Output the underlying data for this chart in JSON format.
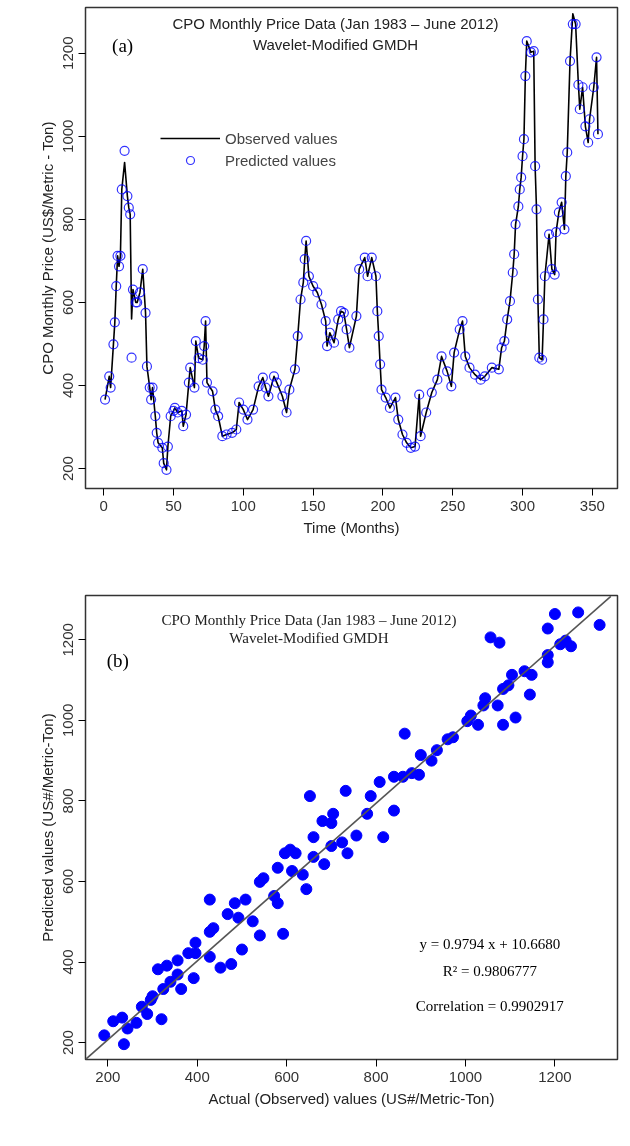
{
  "chart_data": [
    {
      "type": "line",
      "title": "CPO Monthly Price Data (Jan 1983 – June 2012)",
      "subtitle": "Wavelet-Modified GMDH",
      "xlabel": "Time (Months)",
      "ylabel": "CPO Monthly Price (US$/Metric - Ton)",
      "annotations": [
        "(a)"
      ],
      "x": [
        1,
        4,
        5,
        7,
        8,
        9,
        10,
        11,
        12,
        13,
        15,
        17,
        18,
        19,
        20,
        21,
        23,
        24,
        26,
        28,
        30,
        31,
        33,
        34,
        35,
        37,
        38,
        39,
        42,
        43,
        45,
        46,
        48,
        50,
        51,
        53,
        56,
        57,
        59,
        61,
        62,
        65,
        66,
        68,
        71,
        72,
        73,
        74,
        78,
        80,
        82,
        85,
        88,
        92,
        95,
        97,
        100,
        103,
        107,
        111,
        114,
        116,
        118,
        122,
        124,
        128,
        131,
        133,
        137,
        139,
        141,
        143,
        144,
        145,
        147,
        150,
        153,
        156,
        159,
        160,
        162,
        165,
        168,
        170,
        172,
        174,
        176,
        181,
        183,
        187,
        189,
        192,
        195,
        196,
        197,
        198,
        199,
        202,
        205,
        209,
        211,
        214,
        217,
        220,
        223,
        226,
        227,
        231,
        235,
        239,
        242,
        246,
        249,
        251,
        255,
        257,
        259,
        262,
        266,
        270,
        273,
        278,
        283,
        285,
        287,
        289,
        291,
        293,
        294,
        295,
        297,
        298,
        299,
        300,
        301,
        302,
        303,
        306,
        308,
        309,
        310,
        311,
        312,
        314,
        315,
        316,
        319,
        321,
        323,
        324,
        326,
        328,
        330,
        331,
        332,
        334,
        336,
        338,
        340,
        341,
        343,
        345,
        347,
        348,
        351,
        353,
        354
      ],
      "series": [
        {
          "name": "Observed values",
          "color": "#000000",
          "values": [
            366,
            422,
            395,
            499,
            552,
            639,
            712,
            687,
            712,
            872,
            937,
            856,
            828,
            812,
            560,
            631,
            600,
            600,
            624,
            680,
            575,
            446,
            395,
            366,
            395,
            326,
            286,
            262,
            250,
            213,
            197,
            253,
            326,
            339,
            346,
            335,
            339,
            302,
            330,
            407,
            443,
            395,
            507,
            466,
            462,
            495,
            555,
            407,
            386,
            342,
            326,
            278,
            282,
            286,
            294,
            359,
            342,
            318,
            342,
            398,
            419,
            395,
            374,
            422,
            407,
            374,
            335,
            390,
            439,
            519,
            607,
            648,
            704,
            748,
            663,
            639,
            624,
            595,
            555,
            495,
            527,
            503,
            559,
            579,
            575,
            535,
            491,
            567,
            680,
            708,
            663,
            708,
            663,
            579,
            519,
            451,
            390,
            371,
            346,
            371,
            318,
            282,
            262,
            250,
            253,
            378,
            278,
            335,
            383,
            414,
            470,
            434,
            398,
            479,
            535,
            555,
            470,
            443,
            426,
            414,
            422,
            443,
            439,
            491,
            507,
            559,
            603,
            672,
            716,
            788,
            831,
            872,
            901,
            952,
            993,
            1145,
            1229,
            1202,
            1205,
            928,
            824,
            607,
            467,
            462,
            559,
            663,
            764,
            680,
            667,
            769,
            817,
            841,
            776,
            904,
            961,
            1181,
            1295,
            1270,
            1124,
            1065,
            1118,
            1024,
            985,
            1041,
            1118,
            1190,
            1005
          ]
        },
        {
          "name": "Predicted values",
          "type": "scatter",
          "marker": "circle",
          "color": "#0000ff",
          "values": [
            366,
            422,
            395,
            499,
            552,
            639,
            712,
            687,
            712,
            872,
            965,
            856,
            828,
            812,
            467,
            631,
            600,
            600,
            624,
            680,
            575,
            446,
            395,
            366,
            395,
            326,
            286,
            262,
            250,
            213,
            197,
            253,
            326,
            339,
            346,
            335,
            339,
            302,
            330,
            407,
            443,
            395,
            507,
            466,
            462,
            495,
            555,
            407,
            386,
            342,
            326,
            278,
            282,
            286,
            294,
            359,
            342,
            318,
            342,
            398,
            419,
            395,
            374,
            422,
            407,
            374,
            335,
            390,
            439,
            519,
            607,
            648,
            704,
            748,
            663,
            639,
            624,
            595,
            555,
            495,
            527,
            503,
            559,
            579,
            575,
            535,
            491,
            567,
            680,
            708,
            663,
            708,
            663,
            579,
            519,
            451,
            390,
            371,
            346,
            371,
            318,
            282,
            262,
            250,
            253,
            378,
            278,
            335,
            383,
            414,
            470,
            434,
            398,
            479,
            535,
            555,
            470,
            443,
            426,
            414,
            422,
            443,
            439,
            491,
            507,
            559,
            603,
            672,
            716,
            788,
            831,
            872,
            901,
            952,
            993,
            1145,
            1229,
            1202,
            1205,
            928,
            824,
            607,
            467,
            462,
            559,
            663,
            764,
            680,
            667,
            769,
            817,
            841,
            776,
            904,
            961,
            1181,
            1270,
            1270,
            1124,
            1065,
            1118,
            1024,
            985,
            1041,
            1118,
            1190,
            1005
          ]
        }
      ],
      "xlim": [
        -13,
        368
      ],
      "ylim": [
        152,
        1310
      ],
      "xticks": [
        0,
        50,
        100,
        150,
        200,
        250,
        300,
        350
      ],
      "yticks": [
        200,
        400,
        600,
        800,
        1000,
        1200
      ],
      "grid": false,
      "legend": "top left"
    },
    {
      "type": "scatter",
      "title": "CPO Monthly Price Data (Jan 1983 – June 2012)",
      "subtitle": "Wavelet-Modified GMDH",
      "xlabel": "Actual (Observed) values (US#/Metric-Ton)",
      "ylabel": "Predicted values (US#/Metric-Ton)",
      "annotations": [
        "(b)",
        "y = 0.9794 x + 10.6680",
        "R² = 0.9806777",
        "Correlation = 0.9902917"
      ],
      "series": [
        {
          "marker": "circle",
          "color": "#0000ff",
          "x": [
            192,
            236,
            212,
            232,
            244,
            264,
            276,
            288,
            300,
            320,
            312,
            332,
            324,
            340,
            364,
            356,
            380,
            392,
            396,
            428,
            436,
            452,
            476,
            500,
            484,
            428,
            492,
            524,
            540,
            548,
            572,
            592,
            580,
            596,
            608,
            612,
            636,
            644,
            652,
            660,
            680,
            684,
            704,
            700,
            724,
            732,
            736,
            756,
            780,
            788,
            808,
            816,
            840,
            840,
            864,
            860,
            880,
            896,
            924,
            936,
            960,
            972,
            1004,
            1012,
            1028,
            1040,
            1044,
            1072,
            1084,
            1084,
            1104,
            1112,
            1132,
            1144,
            1148,
            1184,
            1184,
            1184,
            1200,
            1212,
            1224,
            1236,
            1252,
            1300,
            1056,
            1076,
            1096,
            900,
            296,
            356,
            396,
            428,
            468,
            508,
            540,
            580,
            620,
            660,
            700
          ],
          "values": [
            218,
            196,
            253,
            262,
            235,
            249,
            289,
            271,
            315,
            258,
            382,
            391,
            333,
            351,
            333,
            404,
            422,
            360,
            448,
            413,
            484,
            386,
            395,
            431,
            546,
            555,
            510,
            501,
            466,
            608,
            564,
            470,
            546,
            670,
            679,
            626,
            617,
            581,
            812,
            661,
            750,
            643,
            768,
            688,
            697,
            825,
            670,
            714,
            768,
            812,
            847,
            710,
            776,
            860,
            967,
            860,
            869,
            865,
            900,
            926,
            953,
            958,
            998,
            1012,
            989,
            1037,
            1055,
            1037,
            989,
            1078,
            1113,
            1007,
            1122,
            1064,
            1113,
            1162,
            1144,
            1228,
            1264,
            1189,
            1198,
            1184,
            1268,
            1237,
            1206,
            1193,
            1087,
            914,
            306,
            369,
            422,
            475,
            519,
            555,
            599,
            634,
            670,
            710,
            745
          ]
        },
        {
          "type": "line",
          "color": "#555555",
          "x": [
            150,
            1325
          ],
          "values": [
            158,
            1308
          ]
        }
      ],
      "xlim": [
        150,
        1340
      ],
      "ylim": [
        158,
        1310
      ],
      "xticks": [
        200,
        400,
        600,
        800,
        1000,
        1200
      ],
      "yticks": [
        200,
        400,
        600,
        800,
        1000,
        1200
      ],
      "grid": false,
      "legend": false
    }
  ]
}
